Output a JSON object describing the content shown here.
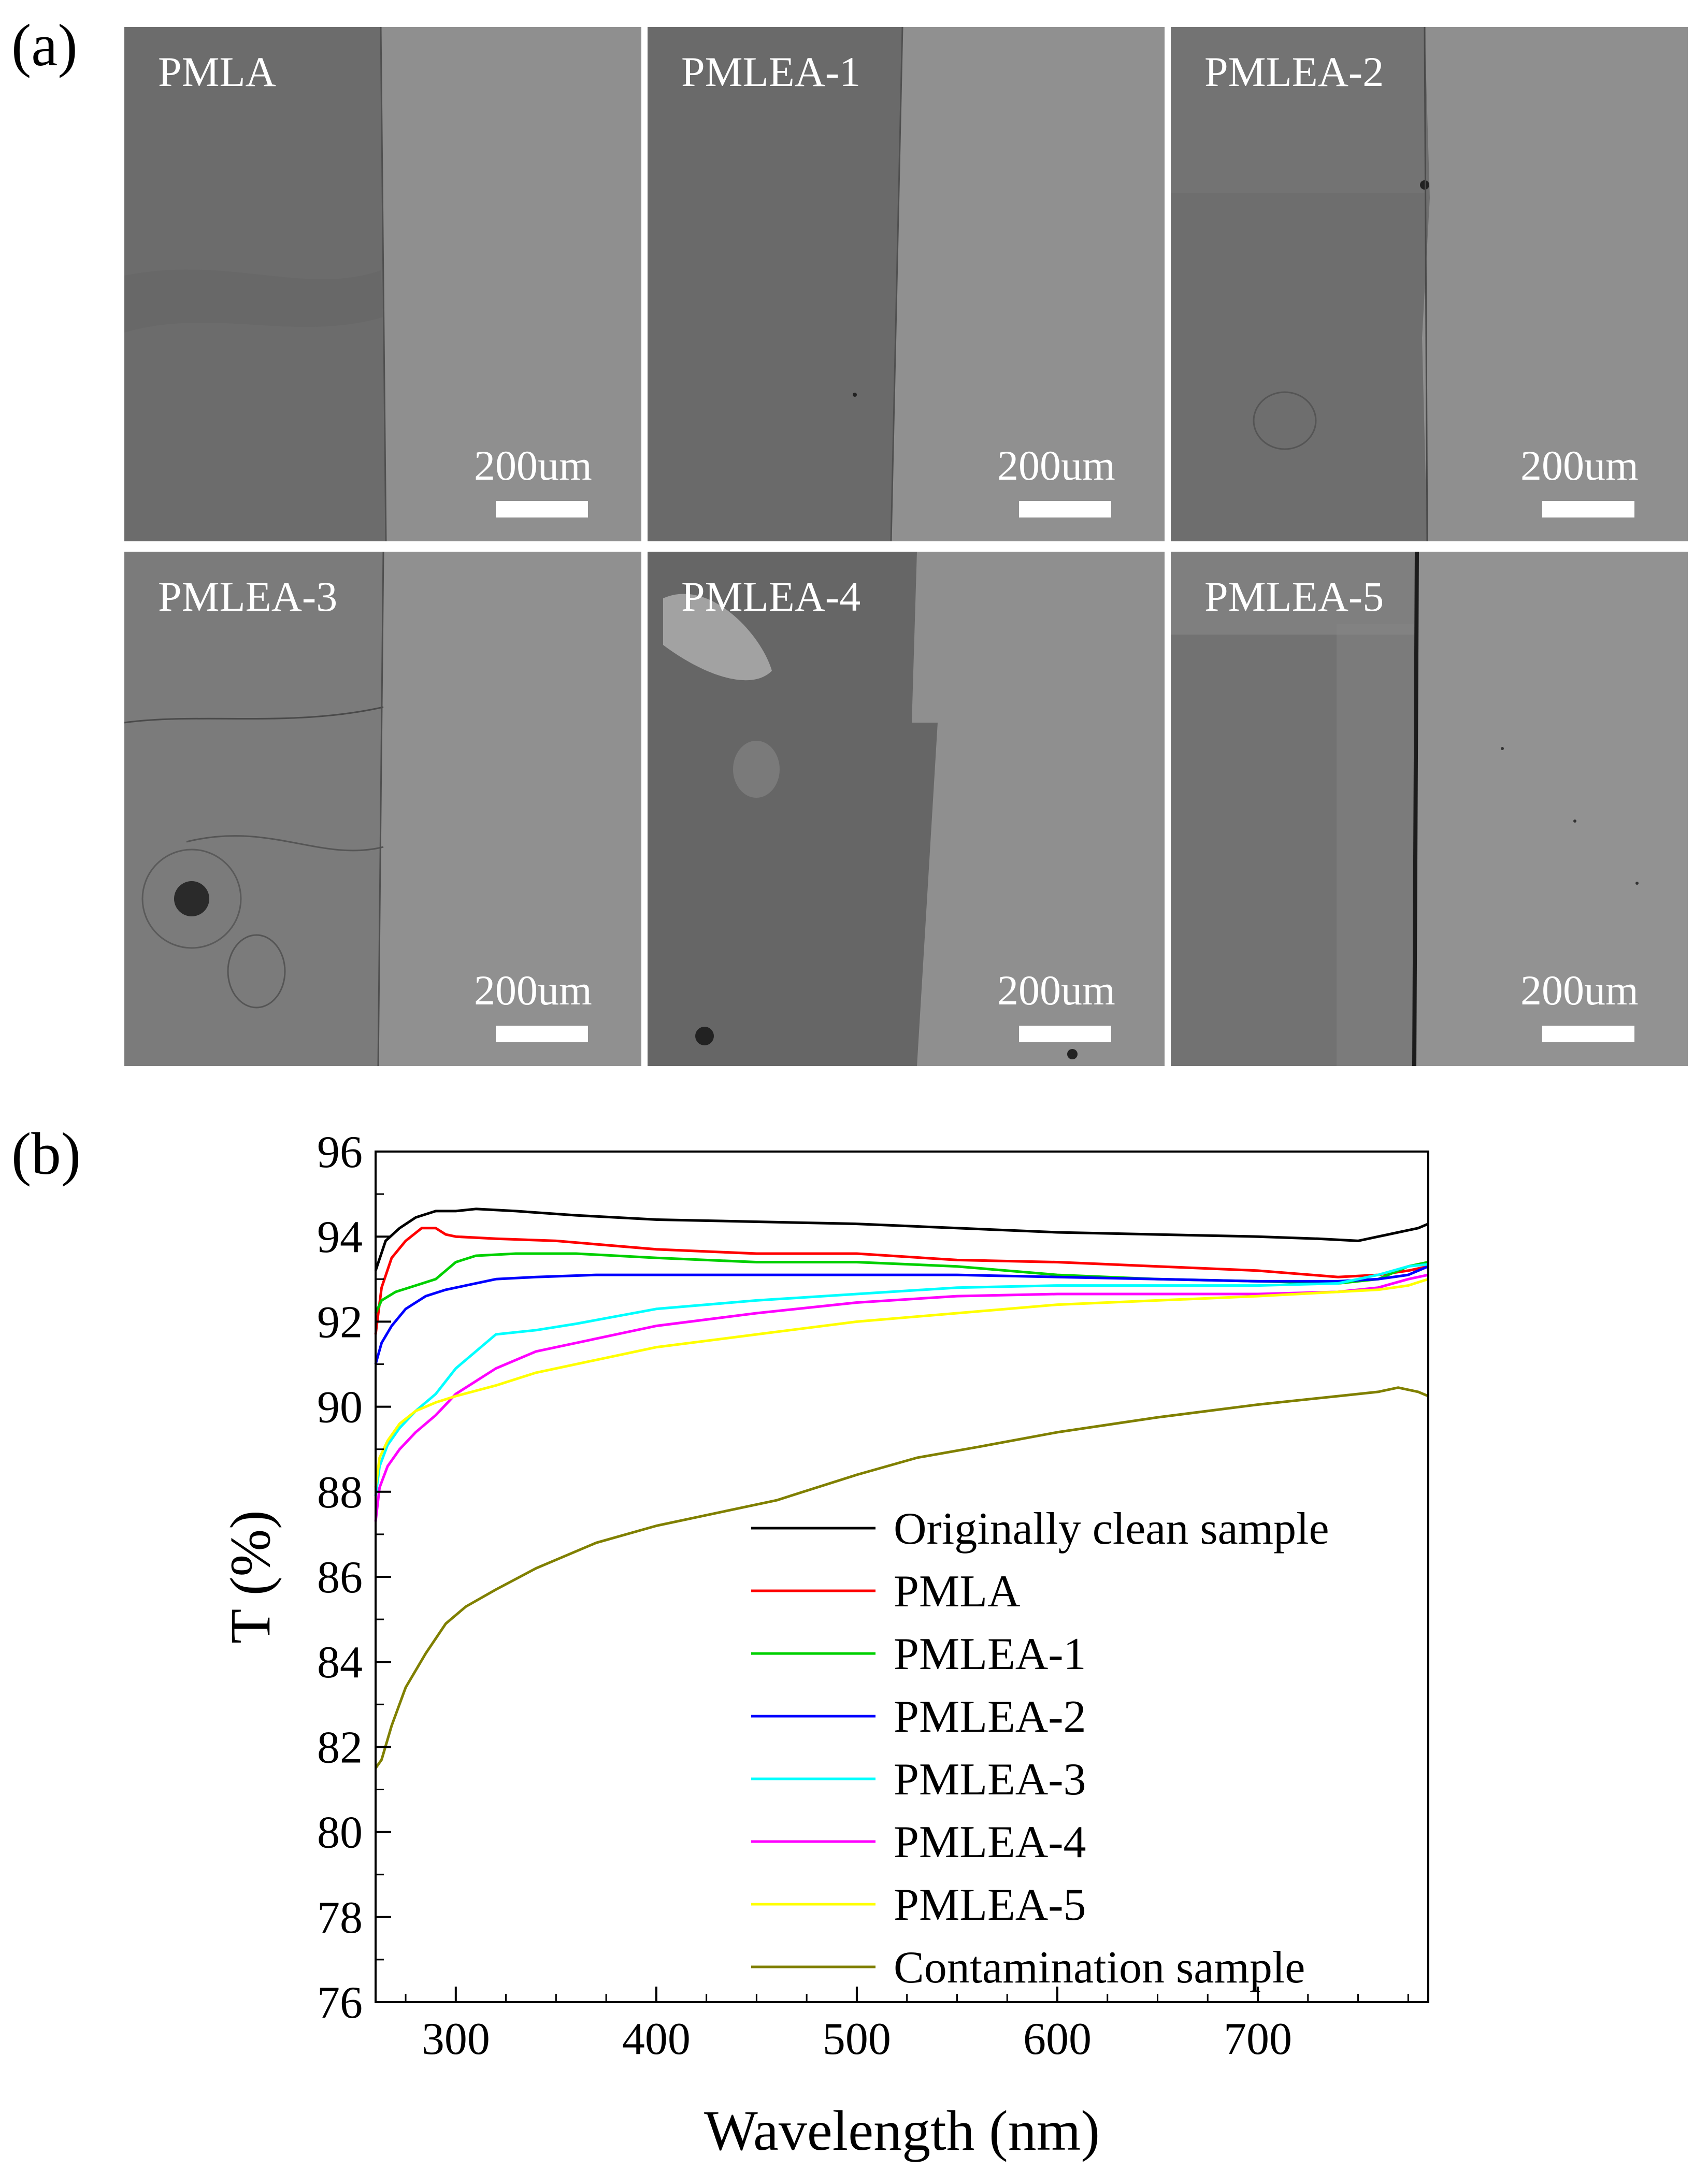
{
  "panel_labels": {
    "a": "(a)",
    "b": "(b)"
  },
  "micrographs": [
    {
      "label": "PMLA",
      "scale": "200um"
    },
    {
      "label": "PMLEA-1",
      "scale": "200um"
    },
    {
      "label": "PMLEA-2",
      "scale": "200um"
    },
    {
      "label": "PMLEA-3",
      "scale": "200um"
    },
    {
      "label": "PMLEA-4",
      "scale": "200um"
    },
    {
      "label": "PMLEA-5",
      "scale": "200um"
    }
  ],
  "chart_data": {
    "type": "line",
    "xlabel": "Wavelength (nm)",
    "ylabel": "T (%)",
    "xlim": [
      260,
      785
    ],
    "ylim": [
      76,
      96
    ],
    "xticks": [
      300,
      400,
      500,
      600,
      700
    ],
    "yticks": [
      76,
      78,
      80,
      82,
      84,
      86,
      88,
      90,
      92,
      94,
      96
    ],
    "legend_position": "lower-right",
    "series": [
      {
        "name": "Originally clean sample",
        "color": "#000000",
        "x": [
          260,
          265,
          272,
          280,
          290,
          300,
          310,
          330,
          360,
          400,
          450,
          500,
          550,
          600,
          650,
          700,
          730,
          750,
          760,
          770,
          780,
          785
        ],
        "y": [
          93.2,
          93.9,
          94.2,
          94.45,
          94.6,
          94.6,
          94.65,
          94.6,
          94.5,
          94.4,
          94.35,
          94.3,
          94.2,
          94.1,
          94.05,
          94.0,
          93.95,
          93.9,
          94.0,
          94.1,
          94.2,
          94.3
        ]
      },
      {
        "name": "PMLA",
        "color": "#ff0000",
        "x": [
          260,
          263,
          268,
          275,
          283,
          290,
          295,
          300,
          320,
          350,
          400,
          450,
          500,
          550,
          600,
          650,
          700,
          740,
          760,
          775,
          785
        ],
        "y": [
          91.7,
          92.8,
          93.5,
          93.9,
          94.2,
          94.2,
          94.05,
          94.0,
          93.95,
          93.9,
          93.7,
          93.6,
          93.6,
          93.45,
          93.4,
          93.3,
          93.2,
          93.05,
          93.1,
          93.2,
          93.3
        ]
      },
      {
        "name": "PMLEA-1",
        "color": "#00d000",
        "x": [
          260,
          263,
          270,
          280,
          290,
          300,
          310,
          330,
          360,
          400,
          450,
          500,
          550,
          600,
          650,
          700,
          740,
          760,
          775,
          785
        ],
        "y": [
          92.2,
          92.5,
          92.7,
          92.85,
          93.0,
          93.4,
          93.55,
          93.6,
          93.6,
          93.5,
          93.4,
          93.4,
          93.3,
          93.1,
          93.0,
          92.95,
          92.9,
          93.0,
          93.3,
          93.4
        ]
      },
      {
        "name": "PMLEA-2",
        "color": "#0000ff",
        "x": [
          260,
          263,
          268,
          275,
          285,
          295,
          305,
          320,
          340,
          370,
          400,
          450,
          500,
          550,
          600,
          650,
          700,
          740,
          760,
          775,
          785
        ],
        "y": [
          91.0,
          91.5,
          91.9,
          92.3,
          92.6,
          92.75,
          92.85,
          93.0,
          93.05,
          93.1,
          93.1,
          93.1,
          93.1,
          93.1,
          93.05,
          93.0,
          92.95,
          92.95,
          93.0,
          93.1,
          93.3
        ]
      },
      {
        "name": "PMLEA-3",
        "color": "#00ffff",
        "x": [
          260,
          262,
          266,
          272,
          280,
          290,
          300,
          310,
          320,
          340,
          360,
          400,
          450,
          500,
          550,
          600,
          650,
          700,
          740,
          760,
          775,
          785
        ],
        "y": [
          87.9,
          88.6,
          89.1,
          89.5,
          89.9,
          90.3,
          90.9,
          91.3,
          91.7,
          91.8,
          91.95,
          92.3,
          92.5,
          92.65,
          92.8,
          92.85,
          92.85,
          92.85,
          92.9,
          93.1,
          93.3,
          93.35
        ]
      },
      {
        "name": "PMLEA-4",
        "color": "#ff00ff",
        "x": [
          260,
          262,
          266,
          272,
          280,
          290,
          300,
          320,
          340,
          370,
          400,
          450,
          500,
          550,
          600,
          650,
          700,
          740,
          760,
          775,
          785
        ],
        "y": [
          87.3,
          88.1,
          88.6,
          89.0,
          89.4,
          89.8,
          90.3,
          90.9,
          91.3,
          91.6,
          91.9,
          92.2,
          92.45,
          92.6,
          92.65,
          92.65,
          92.65,
          92.7,
          92.8,
          93.0,
          93.1
        ]
      },
      {
        "name": "PMLEA-5",
        "color": "#ffff00",
        "x": [
          260,
          262,
          266,
          272,
          280,
          290,
          300,
          320,
          340,
          370,
          400,
          450,
          500,
          550,
          600,
          650,
          700,
          740,
          760,
          775,
          785
        ],
        "y": [
          88.1,
          88.8,
          89.2,
          89.6,
          89.9,
          90.1,
          90.25,
          90.5,
          90.8,
          91.1,
          91.4,
          91.7,
          92.0,
          92.2,
          92.4,
          92.5,
          92.6,
          92.7,
          92.75,
          92.85,
          93.0
        ]
      },
      {
        "name": "Contamination sample",
        "color": "#808000",
        "x": [
          260,
          263,
          268,
          275,
          285,
          295,
          305,
          320,
          340,
          370,
          400,
          430,
          460,
          500,
          530,
          560,
          600,
          650,
          700,
          740,
          760,
          770,
          780,
          785
        ],
        "y": [
          81.5,
          81.7,
          82.5,
          83.4,
          84.2,
          84.9,
          85.3,
          85.7,
          86.2,
          86.8,
          87.2,
          87.5,
          87.8,
          88.4,
          88.8,
          89.05,
          89.4,
          89.75,
          90.05,
          90.25,
          90.35,
          90.45,
          90.35,
          90.25
        ]
      }
    ]
  }
}
